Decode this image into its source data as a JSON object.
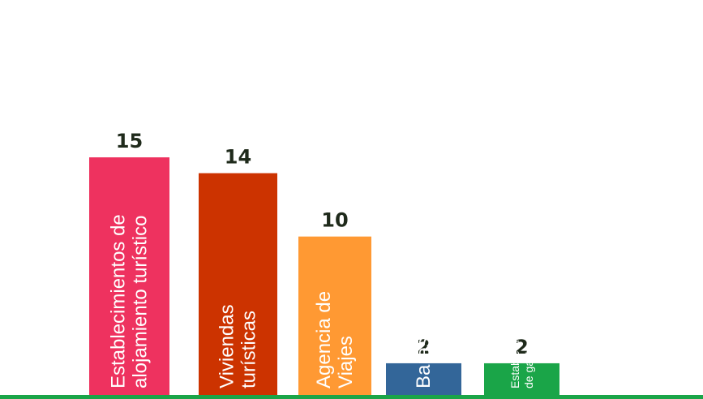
{
  "chart_data": {
    "type": "bar",
    "categories": [
      "Establecimientos de alojamiento turístico",
      "Viviendas turísticas",
      "Agencia de Viajes",
      "Bares",
      "Establecimientos de gastronomía"
    ],
    "label_lines": [
      [
        "Establecimientos de",
        "alojamiento turístico"
      ],
      [
        "Viviendas",
        "turísticas"
      ],
      [
        "Agencia de",
        "Viajes"
      ],
      [
        "Bares"
      ],
      [
        "Establecimientos",
        "de gastronomía"
      ]
    ],
    "values": [
      15,
      14,
      10,
      2,
      2
    ],
    "colors": [
      "#ee325f",
      "#cc3300",
      "#ff9933",
      "#336699",
      "#1aa548"
    ],
    "baseline_color": "#1aa548",
    "title": "",
    "xlabel": "",
    "ylabel": "",
    "grid": false,
    "legend": "none"
  }
}
